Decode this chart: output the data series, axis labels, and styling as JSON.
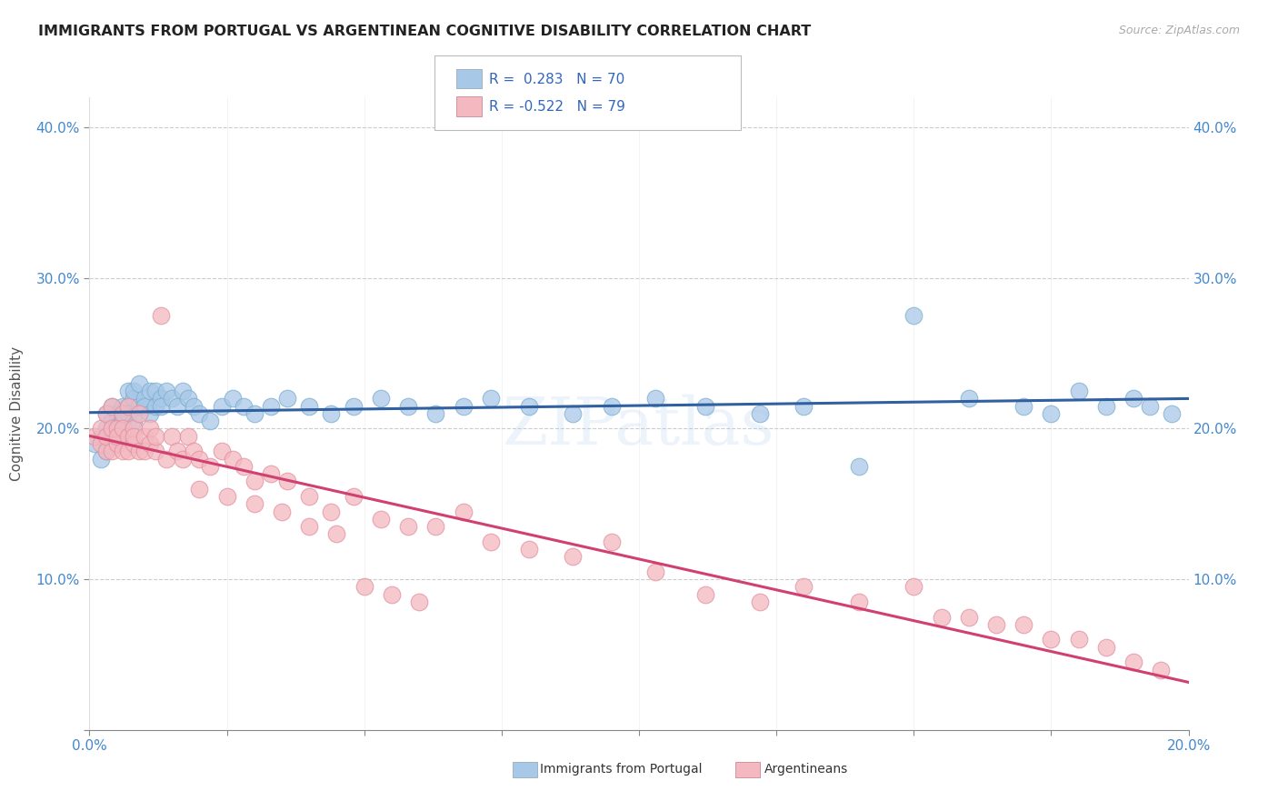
{
  "title": "IMMIGRANTS FROM PORTUGAL VS ARGENTINEAN COGNITIVE DISABILITY CORRELATION CHART",
  "source": "Source: ZipAtlas.com",
  "ylabel": "Cognitive Disability",
  "xlim": [
    0.0,
    0.2
  ],
  "ylim": [
    0.0,
    0.42
  ],
  "xticks": [
    0.0,
    0.025,
    0.05,
    0.075,
    0.1,
    0.125,
    0.15,
    0.175,
    0.2
  ],
  "xtick_labels": [
    "0.0%",
    "",
    "",
    "",
    "",
    "",
    "",
    "",
    "20.0%"
  ],
  "yticks": [
    0.0,
    0.1,
    0.2,
    0.3,
    0.4
  ],
  "ytick_labels": [
    "",
    "10.0%",
    "20.0%",
    "30.0%",
    "40.0%"
  ],
  "legend_labels": [
    "Immigrants from Portugal",
    "Argentineans"
  ],
  "blue_R": "0.283",
  "blue_N": "70",
  "pink_R": "-0.522",
  "pink_N": "79",
  "blue_color": "#a8c8e8",
  "pink_color": "#f4b8c0",
  "blue_line_color": "#3060a0",
  "pink_line_color": "#d04070",
  "grid_color": "#cccccc",
  "background_color": "#ffffff",
  "blue_scatter_x": [
    0.001,
    0.002,
    0.002,
    0.003,
    0.003,
    0.003,
    0.004,
    0.004,
    0.004,
    0.005,
    0.005,
    0.005,
    0.006,
    0.006,
    0.006,
    0.007,
    0.007,
    0.007,
    0.008,
    0.008,
    0.008,
    0.009,
    0.009,
    0.01,
    0.01,
    0.011,
    0.011,
    0.012,
    0.012,
    0.013,
    0.013,
    0.014,
    0.015,
    0.016,
    0.017,
    0.018,
    0.019,
    0.02,
    0.022,
    0.024,
    0.026,
    0.028,
    0.03,
    0.033,
    0.036,
    0.04,
    0.044,
    0.048,
    0.053,
    0.058,
    0.063,
    0.068,
    0.073,
    0.08,
    0.088,
    0.095,
    0.103,
    0.112,
    0.122,
    0.13,
    0.14,
    0.15,
    0.16,
    0.17,
    0.175,
    0.18,
    0.185,
    0.19,
    0.193,
    0.197
  ],
  "blue_scatter_y": [
    0.19,
    0.195,
    0.18,
    0.2,
    0.185,
    0.21,
    0.195,
    0.215,
    0.205,
    0.2,
    0.21,
    0.19,
    0.215,
    0.205,
    0.195,
    0.215,
    0.225,
    0.21,
    0.22,
    0.205,
    0.225,
    0.215,
    0.23,
    0.22,
    0.215,
    0.225,
    0.21,
    0.215,
    0.225,
    0.22,
    0.215,
    0.225,
    0.22,
    0.215,
    0.225,
    0.22,
    0.215,
    0.21,
    0.205,
    0.215,
    0.22,
    0.215,
    0.21,
    0.215,
    0.22,
    0.215,
    0.21,
    0.215,
    0.22,
    0.215,
    0.21,
    0.215,
    0.22,
    0.215,
    0.21,
    0.215,
    0.22,
    0.215,
    0.21,
    0.215,
    0.175,
    0.275,
    0.22,
    0.215,
    0.21,
    0.225,
    0.215,
    0.22,
    0.215,
    0.21
  ],
  "pink_scatter_x": [
    0.001,
    0.002,
    0.002,
    0.003,
    0.003,
    0.003,
    0.004,
    0.004,
    0.004,
    0.005,
    0.005,
    0.005,
    0.006,
    0.006,
    0.006,
    0.007,
    0.007,
    0.007,
    0.008,
    0.008,
    0.008,
    0.009,
    0.009,
    0.01,
    0.01,
    0.011,
    0.011,
    0.012,
    0.012,
    0.013,
    0.014,
    0.015,
    0.016,
    0.017,
    0.018,
    0.019,
    0.02,
    0.022,
    0.024,
    0.026,
    0.028,
    0.03,
    0.033,
    0.036,
    0.04,
    0.044,
    0.048,
    0.053,
    0.058,
    0.063,
    0.068,
    0.073,
    0.08,
    0.088,
    0.095,
    0.103,
    0.112,
    0.122,
    0.13,
    0.14,
    0.15,
    0.155,
    0.16,
    0.165,
    0.17,
    0.175,
    0.18,
    0.185,
    0.19,
    0.195,
    0.02,
    0.025,
    0.03,
    0.035,
    0.04,
    0.045,
    0.05,
    0.055,
    0.06
  ],
  "pink_scatter_y": [
    0.195,
    0.19,
    0.2,
    0.185,
    0.21,
    0.195,
    0.2,
    0.185,
    0.215,
    0.19,
    0.2,
    0.195,
    0.185,
    0.21,
    0.2,
    0.195,
    0.185,
    0.215,
    0.19,
    0.2,
    0.195,
    0.185,
    0.21,
    0.195,
    0.185,
    0.19,
    0.2,
    0.185,
    0.195,
    0.275,
    0.18,
    0.195,
    0.185,
    0.18,
    0.195,
    0.185,
    0.18,
    0.175,
    0.185,
    0.18,
    0.175,
    0.165,
    0.17,
    0.165,
    0.155,
    0.145,
    0.155,
    0.14,
    0.135,
    0.135,
    0.145,
    0.125,
    0.12,
    0.115,
    0.125,
    0.105,
    0.09,
    0.085,
    0.095,
    0.085,
    0.095,
    0.075,
    0.075,
    0.07,
    0.07,
    0.06,
    0.06,
    0.055,
    0.045,
    0.04,
    0.16,
    0.155,
    0.15,
    0.145,
    0.135,
    0.13,
    0.095,
    0.09,
    0.085
  ]
}
